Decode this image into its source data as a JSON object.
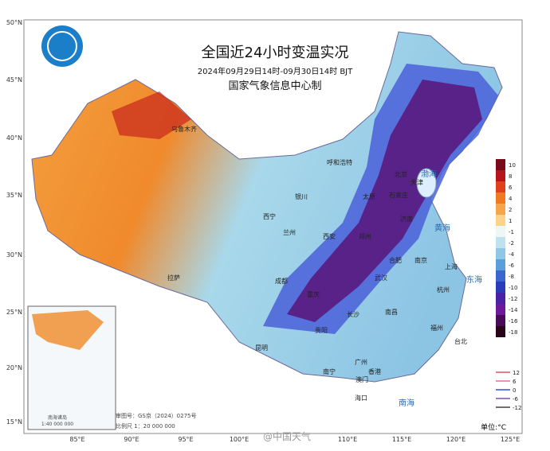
{
  "header": {
    "title": "全国近24小时变温实况",
    "subtitle": "2024年09月29日14时-09月30日14时 BJT",
    "agency": "国家气象信息中心制"
  },
  "legend": {
    "labels": [
      10,
      8,
      6,
      4,
      2,
      1,
      -1,
      -2,
      -4,
      -6,
      -8,
      -10,
      -12,
      -14,
      -16,
      -18
    ],
    "colors": [
      "#7a0a1a",
      "#b3171c",
      "#e0401c",
      "#f07a22",
      "#f6a64a",
      "#fbd48a",
      "#eef6f8",
      "#bfe3ee",
      "#8ec8e6",
      "#5a9edc",
      "#3a66d0",
      "#2a3cb8",
      "#4a22a8",
      "#6a1a9a",
      "#4a0a5a",
      "#2a0418"
    ]
  },
  "contour_legend": {
    "labels": [
      12,
      6,
      0,
      -6,
      -12
    ],
    "colors": [
      "#e05060",
      "#e070a0",
      "#3050e0",
      "#8050a0",
      "#404040"
    ]
  },
  "unit": "单位:°C",
  "lat_labels": [
    "50°N",
    "45°N",
    "40°N",
    "35°N",
    "30°N",
    "25°N",
    "20°N",
    "15°N"
  ],
  "lon_labels": [
    "85°E",
    "90°E",
    "95°E",
    "100°E",
    "110°E",
    "115°E",
    "120°E",
    "125°E"
  ],
  "footer": {
    "review": "审图号：GS京（2024）0275号",
    "scale": "比例尺 1：20 000 000",
    "inset_scale": "1:40 000 000",
    "inset_title": "南海诸岛"
  },
  "watermark": "@中国天气",
  "cities": [
    "乌鲁木齐",
    "呼和浩特",
    "银川",
    "西宁",
    "兰州",
    "拉萨",
    "成都",
    "昆明",
    "南宁",
    "广州",
    "长沙",
    "武汉",
    "南京",
    "上海",
    "杭州",
    "福州",
    "台北",
    "北京",
    "天津",
    "太原",
    "西安",
    "郑州",
    "合肥",
    "南昌",
    "贵阳",
    "重庆",
    "海口",
    "香港",
    "澳门",
    "石家庄",
    "济南"
  ],
  "seas": [
    "渤海",
    "黄海",
    "东海",
    "南海"
  ]
}
